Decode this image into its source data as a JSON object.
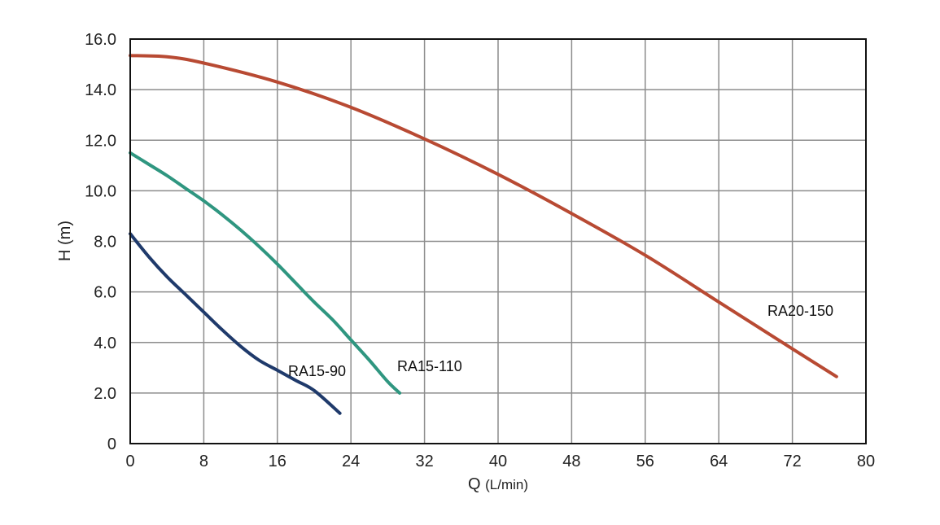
{
  "chart_data": {
    "type": "line",
    "title": "",
    "xlabel": "Q",
    "xlabel_unit": "(L/min)",
    "ylabel": "H (m)",
    "xlim": [
      0,
      80
    ],
    "ylim": [
      0,
      16
    ],
    "x_ticks": [
      0,
      8,
      16,
      24,
      32,
      40,
      48,
      56,
      64,
      72,
      80
    ],
    "x_tick_labels": [
      "0",
      "8",
      "16",
      "24",
      "32",
      "40",
      "48",
      "56",
      "64",
      "72",
      "80"
    ],
    "y_ticks": [
      0,
      2,
      4,
      6,
      8,
      10,
      12,
      14,
      16
    ],
    "y_tick_labels": [
      "0",
      "2.0",
      "4.0",
      "6.0",
      "8.0",
      "10.0",
      "12.0",
      "14.0",
      "16.0"
    ],
    "grid": true,
    "series": [
      {
        "name": "RA15-90",
        "color": "#1f3a6b",
        "x": [
          0,
          2,
          4,
          6,
          8,
          10,
          12,
          14,
          16,
          18,
          20,
          22.8
        ],
        "y": [
          8.3,
          7.4,
          6.6,
          5.9,
          5.2,
          4.5,
          3.85,
          3.3,
          2.9,
          2.5,
          2.1,
          1.2
        ]
      },
      {
        "name": "RA15-110",
        "color": "#2f9680",
        "x": [
          0,
          2,
          4,
          6,
          8,
          10,
          12,
          14,
          16,
          18,
          20,
          22,
          24,
          26,
          28,
          29.3
        ],
        "y": [
          11.5,
          11.05,
          10.6,
          10.1,
          9.6,
          9.05,
          8.45,
          7.8,
          7.1,
          6.35,
          5.6,
          4.9,
          4.1,
          3.3,
          2.45,
          2.0
        ]
      },
      {
        "name": "RA20-150",
        "color": "#b84a33",
        "x": [
          0,
          4,
          8,
          16,
          24,
          32,
          40,
          48,
          56,
          64,
          72,
          76.8
        ],
        "y": [
          15.35,
          15.3,
          15.05,
          14.3,
          13.3,
          12.05,
          10.65,
          9.1,
          7.45,
          5.6,
          3.75,
          2.65
        ]
      }
    ]
  }
}
